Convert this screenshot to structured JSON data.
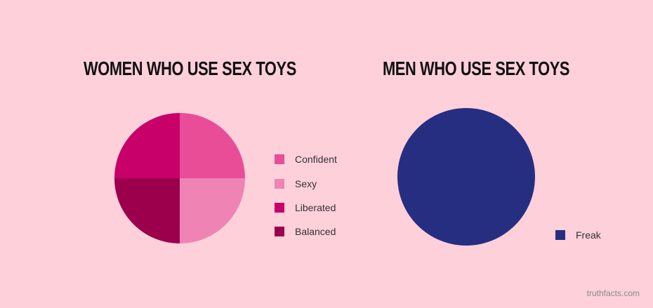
{
  "chart_data": [
    {
      "type": "pie",
      "title": "WOMEN WHO USE SEX TOYS",
      "slices": [
        {
          "label": "Confident",
          "value": 25,
          "color": "#e94d97"
        },
        {
          "label": "Sexy",
          "value": 25,
          "color": "#ef83b3"
        },
        {
          "label": "Balanced",
          "value": 25,
          "color": "#9c004d"
        },
        {
          "label": "Liberated",
          "value": 25,
          "color": "#c8006a"
        }
      ],
      "legend": [
        {
          "label": "Confident",
          "color": "#e94d97"
        },
        {
          "label": "Sexy",
          "color": "#ef83b3"
        },
        {
          "label": "Liberated",
          "color": "#c8006a"
        },
        {
          "label": "Balanced",
          "color": "#9c004d"
        }
      ],
      "legend_position": "right"
    },
    {
      "type": "pie",
      "title": "MEN WHO USE SEX TOYS",
      "slices": [
        {
          "label": "Freak",
          "value": 100,
          "color": "#262e82"
        }
      ],
      "legend": [
        {
          "label": "Freak",
          "color": "#262e82"
        }
      ],
      "legend_position": "bottom-right"
    }
  ],
  "footer": {
    "credit": "truthfacts.com"
  },
  "colors": {
    "background": "#fdd0da",
    "title": "#111111"
  }
}
